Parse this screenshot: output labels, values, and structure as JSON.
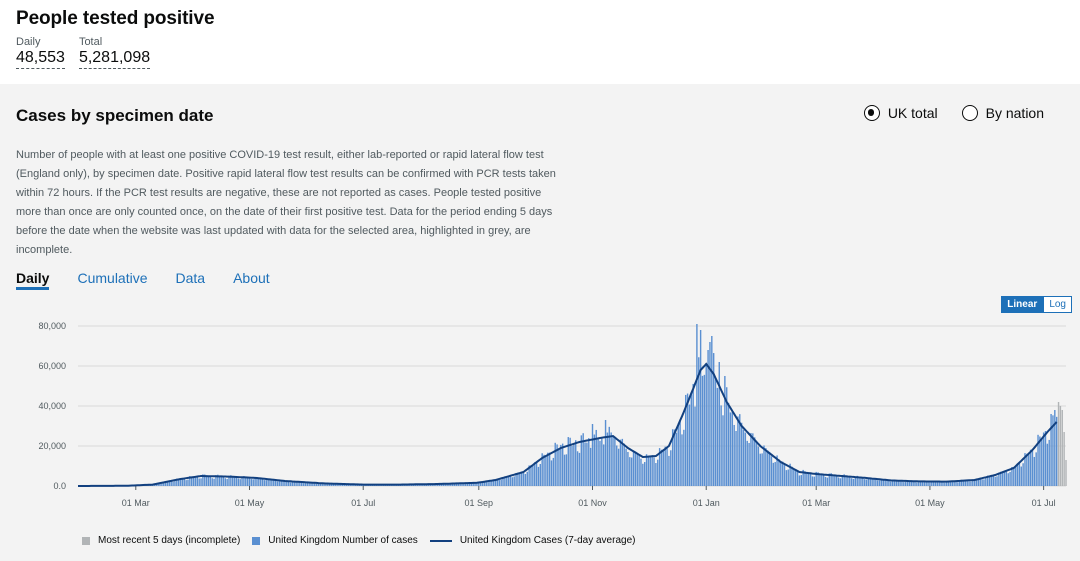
{
  "headline": {
    "title": "People tested positive",
    "daily_label": "Daily",
    "daily_value": "48,553",
    "total_label": "Total",
    "total_value": "5,281,098"
  },
  "card": {
    "title": "Cases by specimen date",
    "radio_uk": "UK total",
    "radio_nation": "By nation",
    "selected": "UK total",
    "description": "Number of people with at least one positive COVID-19 test result, either lab-reported or rapid lateral flow test (England only), by specimen date. Positive rapid lateral flow test results can be confirmed with PCR tests taken within 72 hours. If the PCR test results are negative, these are not reported as cases. People tested positive more than once are only counted once, on the date of their first positive test. Data for the period ending 5 days before the date when the website was last updated with data for the selected area, highlighted in grey, are incomplete.",
    "tabs": [
      "Daily",
      "Cumulative",
      "Data",
      "About"
    ],
    "active_tab": "Daily",
    "scale_linear": "Linear",
    "scale_log": "Log",
    "scale_selected": "Linear"
  },
  "colors": {
    "bar": "#5a8fd1",
    "bar_incomplete": "#b1b4b6",
    "line": "#12407f",
    "accent": "#1d70b8"
  },
  "chart_data": {
    "type": "bar",
    "ylim": [
      0,
      85000
    ],
    "y_ticks": [
      "0.0",
      "20,000",
      "40,000",
      "60,000",
      "80,000"
    ],
    "y_tick_values": [
      0,
      20000,
      40000,
      60000,
      80000
    ],
    "x_ticks": [
      "01 Mar",
      "01 May",
      "01 Jul",
      "01 Sep",
      "01 Nov",
      "01 Jan",
      "01 Mar",
      "01 May",
      "01 Jul"
    ],
    "x_tick_dates": [
      "2020-03-01",
      "2020-05-01",
      "2020-07-01",
      "2020-09-01",
      "2020-11-01",
      "2021-01-01",
      "2021-03-01",
      "2021-05-01",
      "2021-07-01"
    ],
    "x_range": [
      "2020-01-30",
      "2021-07-13"
    ],
    "grid": true,
    "legend_position": "bottom",
    "series": [
      {
        "name": "Most recent 5 days (incomplete)",
        "kind": "bar",
        "points": [
          [
            "2021-07-09",
            42000
          ],
          [
            "2021-07-10",
            40000
          ],
          [
            "2021-07-11",
            38000
          ],
          [
            "2021-07-12",
            27000
          ],
          [
            "2021-07-13",
            13000
          ]
        ]
      },
      {
        "name": "United Kingdom Number of cases",
        "kind": "bar",
        "anchors": [
          [
            "2020-01-30",
            0
          ],
          [
            "2020-02-25",
            100
          ],
          [
            "2020-03-10",
            800
          ],
          [
            "2020-03-25",
            3500
          ],
          [
            "2020-04-05",
            5000
          ],
          [
            "2020-04-20",
            4600
          ],
          [
            "2020-05-05",
            4000
          ],
          [
            "2020-05-20",
            2500
          ],
          [
            "2020-06-10",
            1200
          ],
          [
            "2020-07-01",
            700
          ],
          [
            "2020-07-20",
            700
          ],
          [
            "2020-08-10",
            1000
          ],
          [
            "2020-08-31",
            1600
          ],
          [
            "2020-09-10",
            3000
          ],
          [
            "2020-09-25",
            7000
          ],
          [
            "2020-10-05",
            14000
          ],
          [
            "2020-10-15",
            20000
          ],
          [
            "2020-10-25",
            22000
          ],
          [
            "2020-11-05",
            24000
          ],
          [
            "2020-11-12",
            26000
          ],
          [
            "2020-11-20",
            18000
          ],
          [
            "2020-11-28",
            14000
          ],
          [
            "2020-12-05",
            15000
          ],
          [
            "2020-12-12",
            20000
          ],
          [
            "2020-12-20",
            36000
          ],
          [
            "2020-12-29",
            58000
          ],
          [
            "2021-01-05",
            56000
          ],
          [
            "2021-01-12",
            42000
          ],
          [
            "2021-01-20",
            30000
          ],
          [
            "2021-01-30",
            20000
          ],
          [
            "2021-02-10",
            12000
          ],
          [
            "2021-02-20",
            7000
          ],
          [
            "2021-03-01",
            6000
          ],
          [
            "2021-03-15",
            5000
          ],
          [
            "2021-03-28",
            4000
          ],
          [
            "2021-04-10",
            2800
          ],
          [
            "2021-04-25",
            2300
          ],
          [
            "2021-05-10",
            2200
          ],
          [
            "2021-05-25",
            3000
          ],
          [
            "2021-06-05",
            5500
          ],
          [
            "2021-06-15",
            9000
          ],
          [
            "2021-06-25",
            18000
          ],
          [
            "2021-07-03",
            28000
          ],
          [
            "2021-07-08",
            34000
          ]
        ],
        "peaks": [
          [
            "2020-11-01",
            31000
          ],
          [
            "2020-11-08",
            33000
          ],
          [
            "2020-12-27",
            81000
          ],
          [
            "2020-12-29",
            78000
          ],
          [
            "2021-01-02",
            68000
          ],
          [
            "2021-01-03",
            72000
          ],
          [
            "2021-01-04",
            75000
          ],
          [
            "2021-01-08",
            62000
          ],
          [
            "2021-01-11",
            55000
          ],
          [
            "2021-07-05",
            36000
          ],
          [
            "2021-07-07",
            38000
          ]
        ]
      },
      {
        "name": "United Kingdom Cases (7-day average)",
        "kind": "line",
        "anchors": [
          [
            "2020-01-30",
            0
          ],
          [
            "2020-02-25",
            100
          ],
          [
            "2020-03-10",
            700
          ],
          [
            "2020-03-25",
            3500
          ],
          [
            "2020-04-05",
            5000
          ],
          [
            "2020-04-20",
            4700
          ],
          [
            "2020-05-05",
            4000
          ],
          [
            "2020-05-20",
            2500
          ],
          [
            "2020-06-10",
            1300
          ],
          [
            "2020-07-01",
            700
          ],
          [
            "2020-07-20",
            700
          ],
          [
            "2020-08-10",
            1000
          ],
          [
            "2020-08-31",
            1600
          ],
          [
            "2020-09-10",
            3000
          ],
          [
            "2020-09-25",
            7000
          ],
          [
            "2020-10-05",
            14000
          ],
          [
            "2020-10-15",
            19000
          ],
          [
            "2020-10-25",
            22000
          ],
          [
            "2020-11-05",
            24000
          ],
          [
            "2020-11-12",
            25000
          ],
          [
            "2020-11-20",
            19000
          ],
          [
            "2020-11-28",
            14500
          ],
          [
            "2020-12-05",
            15000
          ],
          [
            "2020-12-12",
            20000
          ],
          [
            "2020-12-20",
            37000
          ],
          [
            "2020-12-29",
            58000
          ],
          [
            "2021-01-01",
            61000
          ],
          [
            "2021-01-05",
            56000
          ],
          [
            "2021-01-12",
            42000
          ],
          [
            "2021-01-20",
            30000
          ],
          [
            "2021-01-30",
            20000
          ],
          [
            "2021-02-10",
            12000
          ],
          [
            "2021-02-20",
            7000
          ],
          [
            "2021-03-01",
            6000
          ],
          [
            "2021-03-15",
            5000
          ],
          [
            "2021-03-28",
            4000
          ],
          [
            "2021-04-10",
            2800
          ],
          [
            "2021-04-25",
            2300
          ],
          [
            "2021-05-10",
            2200
          ],
          [
            "2021-05-25",
            3000
          ],
          [
            "2021-06-05",
            5500
          ],
          [
            "2021-06-15",
            9000
          ],
          [
            "2021-06-25",
            18000
          ],
          [
            "2021-07-03",
            27000
          ],
          [
            "2021-07-08",
            32000
          ]
        ]
      }
    ]
  }
}
